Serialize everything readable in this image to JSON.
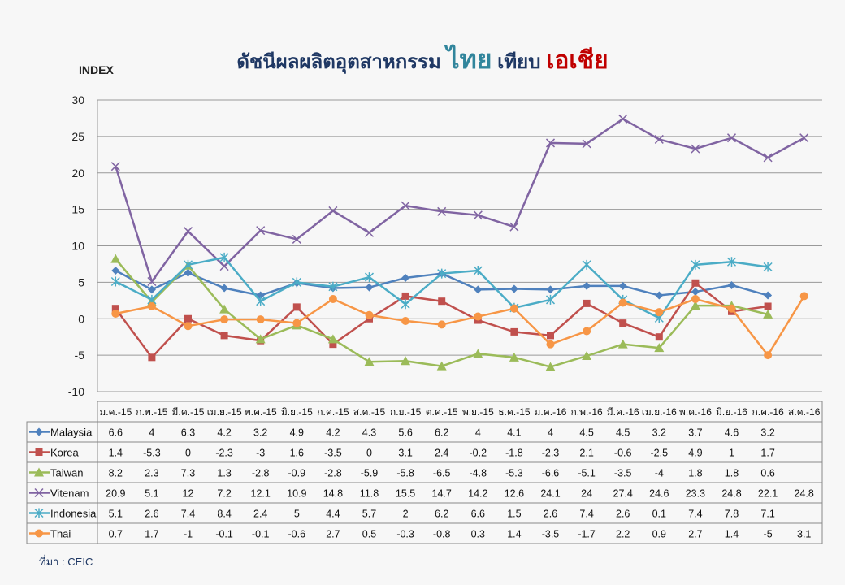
{
  "chart_data": {
    "type": "line",
    "title_parts": [
      "ดัชนีผลผลิตอุตสาหกรรม",
      "ไทย",
      "เทียบ",
      "เอเชีย"
    ],
    "ylabel": "INDEX",
    "ylim": [
      -10,
      30
    ],
    "yticks": [
      -10,
      -5,
      0,
      5,
      10,
      15,
      20,
      25,
      30
    ],
    "grid": true,
    "categories": [
      "ม.ค.-15",
      "ก.พ.-15",
      "มี.ค.-15",
      "เม.ย.-15",
      "พ.ค.-15",
      "มิ.ย.-15",
      "ก.ค.-15",
      "ส.ค.-15",
      "ก.ย.-15",
      "ต.ค.-15",
      "พ.ย.-15",
      "ธ.ค.-15",
      "ม.ค.-16",
      "ก.พ.-16",
      "มี.ค.-16",
      "เม.ย.-16",
      "พ.ค.-16",
      "มิ.ย.-16",
      "ก.ค.-16",
      "ส.ค.-16"
    ],
    "series": [
      {
        "name": "Malaysia",
        "color": "#4f81bd",
        "marker": "diamond",
        "values": [
          6.6,
          4,
          6.3,
          4.2,
          3.2,
          4.9,
          4.2,
          4.3,
          5.6,
          6.2,
          4,
          4.1,
          4,
          4.5,
          4.5,
          3.2,
          3.7,
          4.6,
          3.2,
          null
        ]
      },
      {
        "name": "Korea",
        "color": "#c0504d",
        "marker": "square",
        "values": [
          1.4,
          -5.3,
          0,
          -2.3,
          -3,
          1.6,
          -3.5,
          0,
          3.1,
          2.4,
          -0.2,
          -1.8,
          -2.3,
          2.1,
          -0.6,
          -2.5,
          4.9,
          1,
          1.7,
          null
        ]
      },
      {
        "name": "Taiwan",
        "color": "#9bbb59",
        "marker": "triangle",
        "values": [
          8.2,
          2.3,
          7.3,
          1.3,
          -2.8,
          -0.9,
          -2.8,
          -5.9,
          -5.8,
          -6.5,
          -4.8,
          -5.3,
          -6.6,
          -5.1,
          -3.5,
          -4,
          1.8,
          1.8,
          0.6,
          null
        ]
      },
      {
        "name": "Vitenam",
        "color": "#8064a2",
        "marker": "x",
        "values": [
          20.9,
          5.1,
          12,
          7.2,
          12.1,
          10.9,
          14.8,
          11.8,
          15.5,
          14.7,
          14.2,
          12.6,
          24.1,
          24,
          27.4,
          24.6,
          23.3,
          24.8,
          22.1,
          24.8
        ]
      },
      {
        "name": "Indonesia",
        "color": "#4bacc6",
        "marker": "star",
        "values": [
          5.1,
          2.6,
          7.4,
          8.4,
          2.4,
          5,
          4.4,
          5.7,
          2,
          6.2,
          6.6,
          1.5,
          2.6,
          7.4,
          2.6,
          0.1,
          7.4,
          7.8,
          7.1,
          null
        ]
      },
      {
        "name": "Thai",
        "color": "#f79646",
        "marker": "circle",
        "values": [
          0.7,
          1.7,
          -1,
          -0.1,
          -0.1,
          -0.6,
          2.7,
          0.5,
          -0.3,
          -0.8,
          0.3,
          1.4,
          -3.5,
          -1.7,
          2.2,
          0.9,
          2.7,
          1.4,
          -5,
          3.1
        ]
      }
    ]
  },
  "source": "ที่มา : CEIC"
}
